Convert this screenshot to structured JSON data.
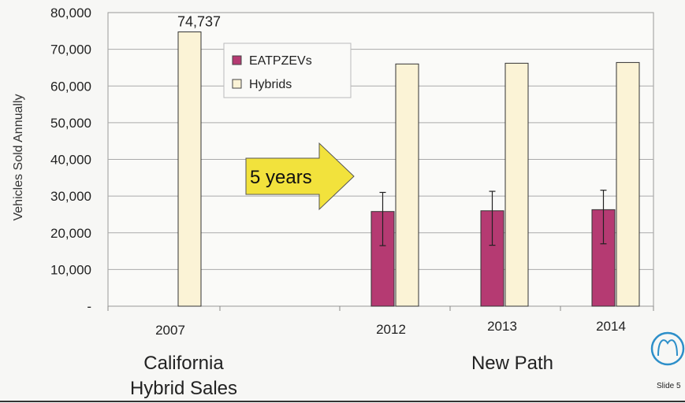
{
  "chart_data": {
    "type": "bar",
    "title": "",
    "ylabel": "Vehicles Sold Annually",
    "ylim": [
      0,
      80000
    ],
    "yticks": [
      "-",
      "10,000",
      "20,000",
      "30,000",
      "40,000",
      "50,000",
      "60,000",
      "70,000",
      "80,000"
    ],
    "categories": [
      "2007",
      "2012",
      "2013",
      "2014"
    ],
    "series": [
      {
        "name": "EATPZEVs",
        "values": [
          null,
          25800,
          26000,
          26300
        ],
        "error_low": [
          null,
          16500,
          16600,
          17000
        ],
        "error_high": [
          null,
          31000,
          31300,
          31600
        ]
      },
      {
        "name": "Hybrids",
        "values": [
          74737,
          66000,
          66200,
          66400
        ]
      }
    ],
    "data_labels": [
      {
        "category": "2007",
        "series": "Hybrids",
        "text": "74,737"
      }
    ],
    "group_labels": [
      {
        "lines": [
          "California",
          "Hybrid Sales"
        ]
      },
      {
        "lines": [
          "New Path"
        ]
      }
    ],
    "annotation": "5 years",
    "grid": true,
    "legend_position": "top-center"
  },
  "colors": {
    "eatpzev": "#b53a72",
    "hybrid": "#fbf3d6",
    "arrow": "#f2e23c"
  },
  "slide_label": "Slide 5"
}
